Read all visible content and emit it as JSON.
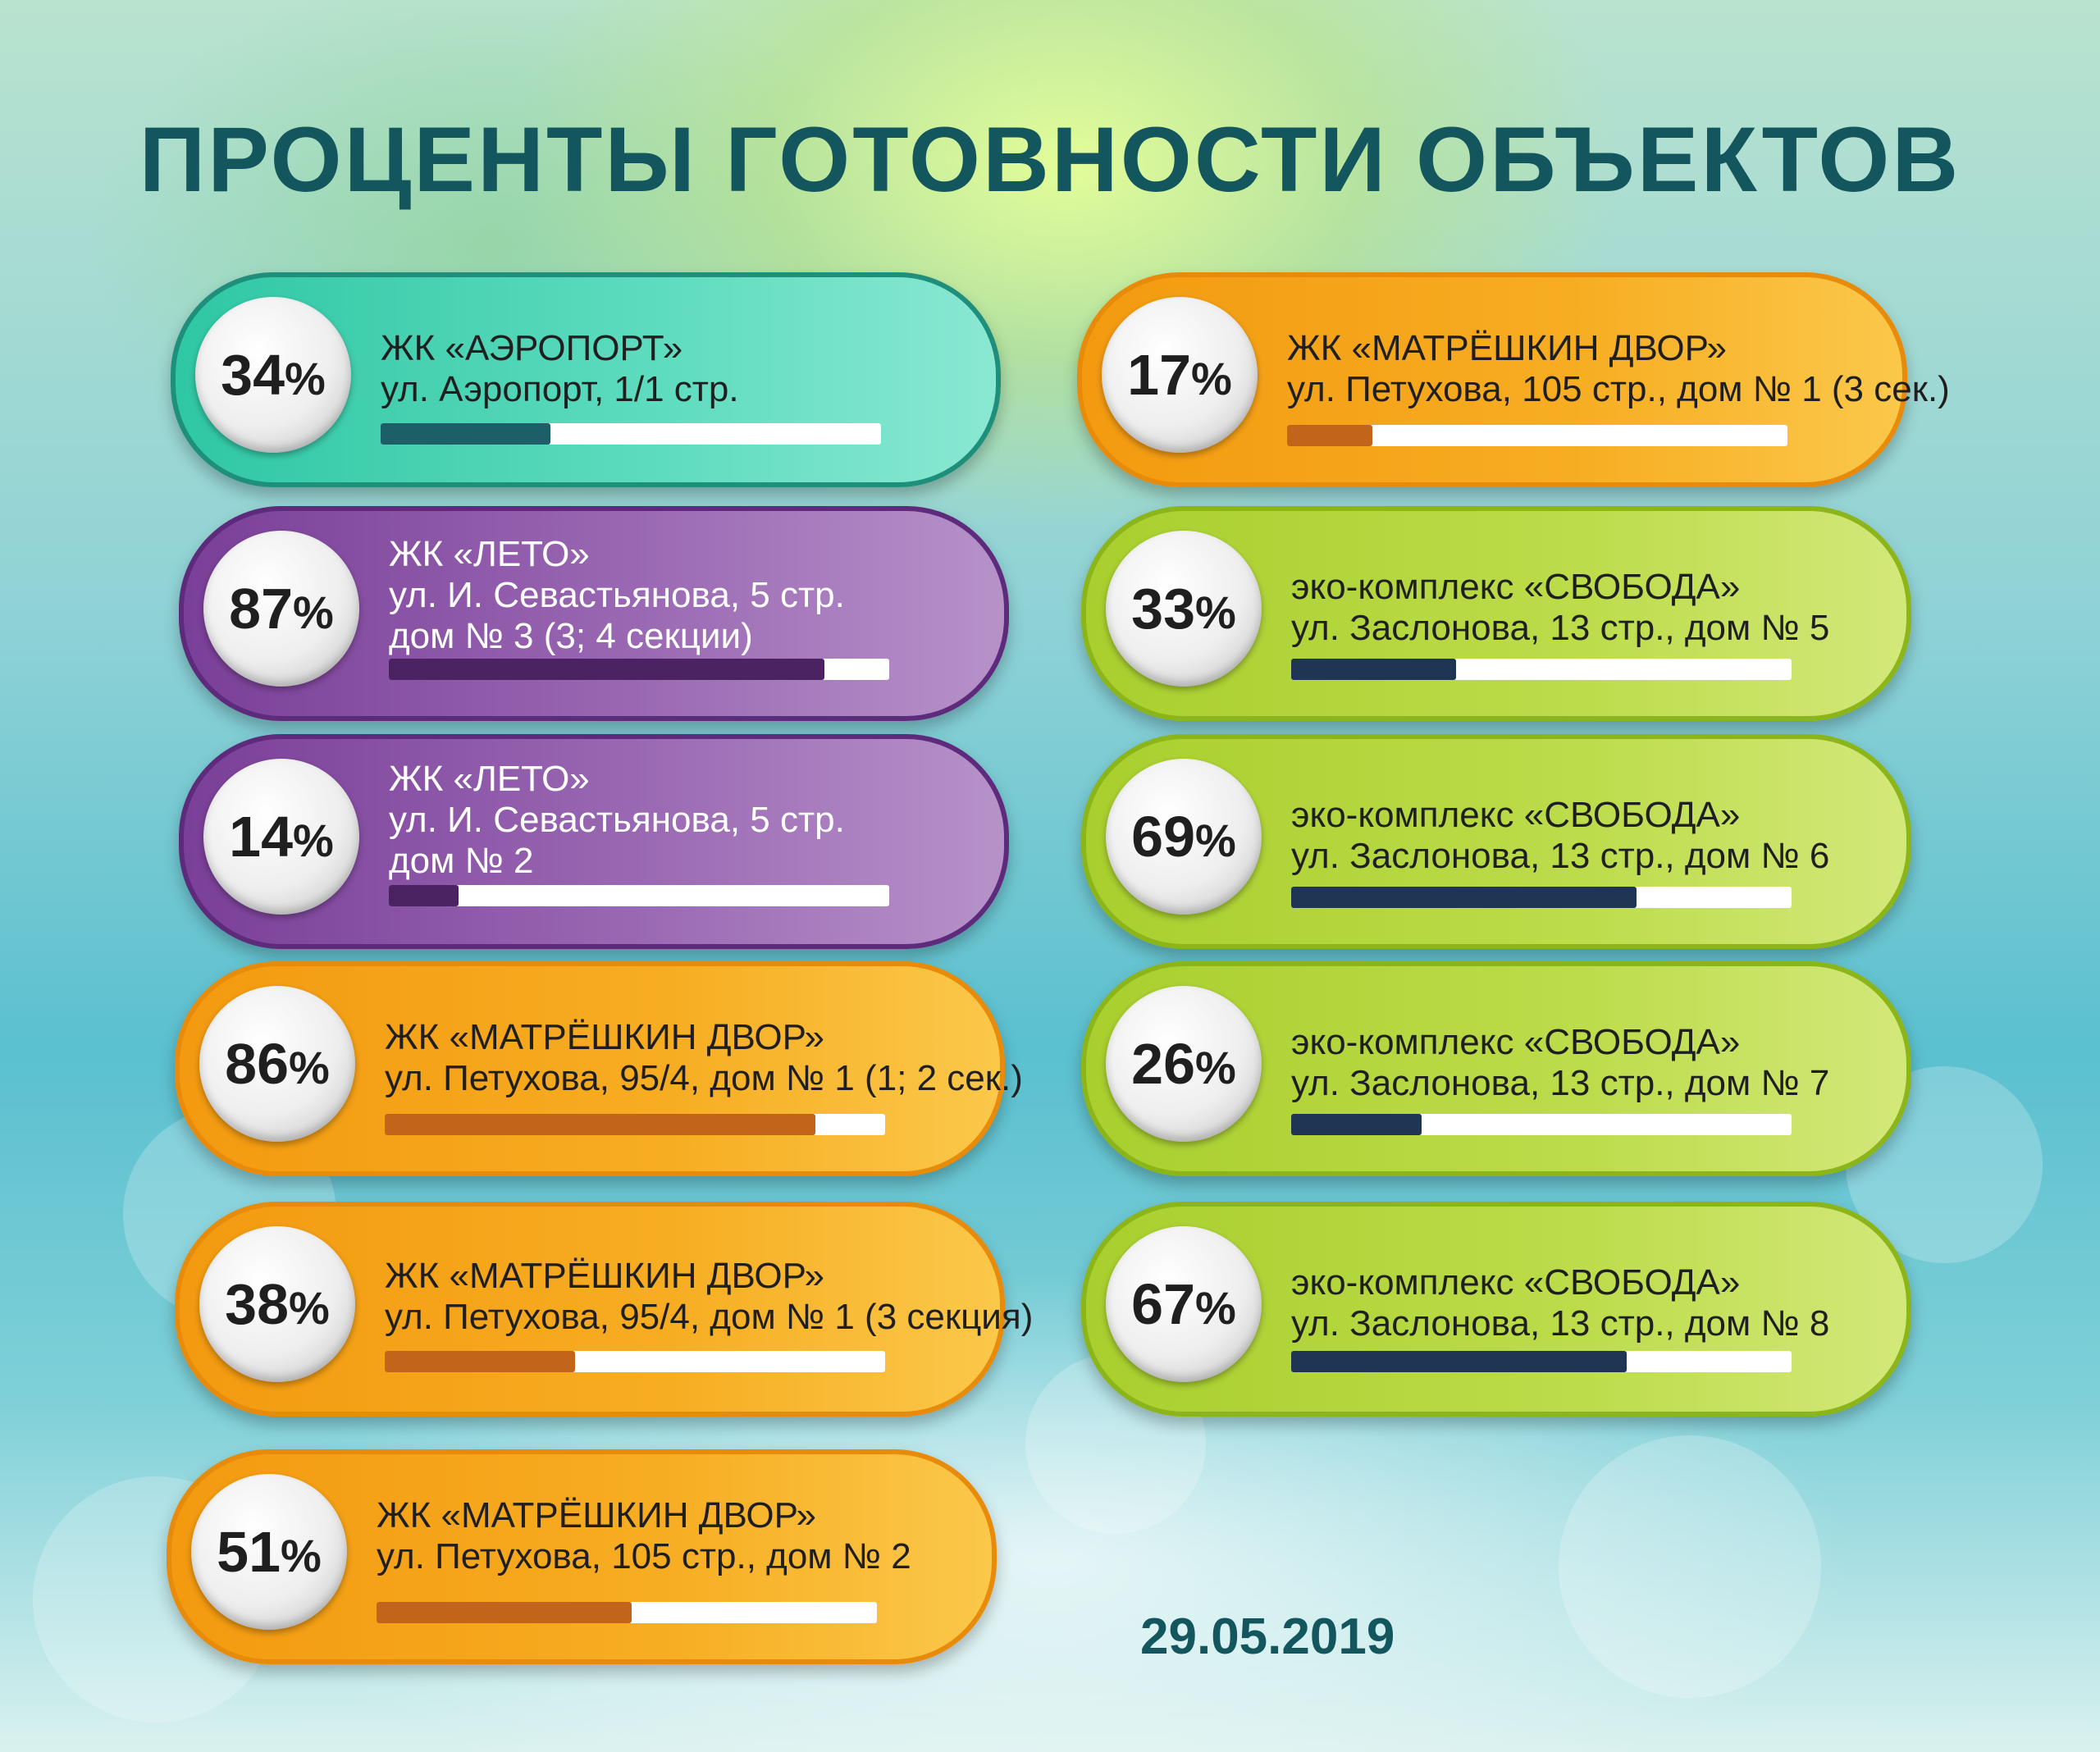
{
  "title": "ПРОЦЕНТЫ ГОТОВНОСТИ ОБЪЕКТОВ",
  "date": "29.05.2019",
  "colors": {
    "teal": "#2fc7a4",
    "purple": "#8a55a6",
    "orange": "#f5a418",
    "green": "#b4d63c",
    "title": "#14565e"
  },
  "items": [
    {
      "percent": "34",
      "progress": 0.34,
      "theme": "teal",
      "lines": [
        "ЖК «АЭРОПОРТ»",
        "ул. Аэропорт, 1/1 стр."
      ]
    },
    {
      "percent": "87",
      "progress": 0.87,
      "theme": "purple",
      "lines": [
        "ЖК «ЛЕТО»",
        "ул. И. Севастьянова, 5 стр.",
        "дом № 3 (3; 4 секции)"
      ]
    },
    {
      "percent": "14",
      "progress": 0.14,
      "theme": "purple",
      "lines": [
        "ЖК «ЛЕТО»",
        "ул. И. Севастьянова, 5 стр.",
        "дом № 2"
      ]
    },
    {
      "percent": "86",
      "progress": 0.86,
      "theme": "orange",
      "lines": [
        "ЖК «МАТРЁШКИН ДВОР»",
        "ул. Петухова, 95/4, дом № 1 (1; 2 сек.)"
      ]
    },
    {
      "percent": "38",
      "progress": 0.38,
      "theme": "orange",
      "lines": [
        "ЖК «МАТРЁШКИН ДВОР»",
        "ул. Петухова, 95/4, дом № 1 (3 секция)"
      ]
    },
    {
      "percent": "51",
      "progress": 0.51,
      "theme": "orange",
      "lines": [
        "ЖК «МАТРЁШКИН ДВОР»",
        "ул. Петухова, 105 стр., дом № 2"
      ]
    },
    {
      "percent": "17",
      "progress": 0.17,
      "theme": "orange",
      "lines": [
        "ЖК «МАТРЁШКИН ДВОР»",
        "ул. Петухова, 105 стр., дом № 1 (3 сек.)"
      ]
    },
    {
      "percent": "33",
      "progress": 0.33,
      "theme": "green",
      "lines": [
        "эко-комплекс «СВОБОДА»",
        "ул. Заслонова, 13 стр., дом № 5"
      ]
    },
    {
      "percent": "69",
      "progress": 0.69,
      "theme": "green",
      "lines": [
        "эко-комплекс «СВОБОДА»",
        "ул. Заслонова, 13 стр., дом № 6"
      ]
    },
    {
      "percent": "26",
      "progress": 0.26,
      "theme": "green",
      "lines": [
        "эко-комплекс «СВОБОДА»",
        "ул. Заслонова, 13 стр., дом № 7"
      ]
    },
    {
      "percent": "67",
      "progress": 0.67,
      "theme": "green",
      "lines": [
        "эко-комплекс «СВОБОДА»",
        "ул. Заслонова, 13 стр., дом № 8"
      ]
    }
  ]
}
